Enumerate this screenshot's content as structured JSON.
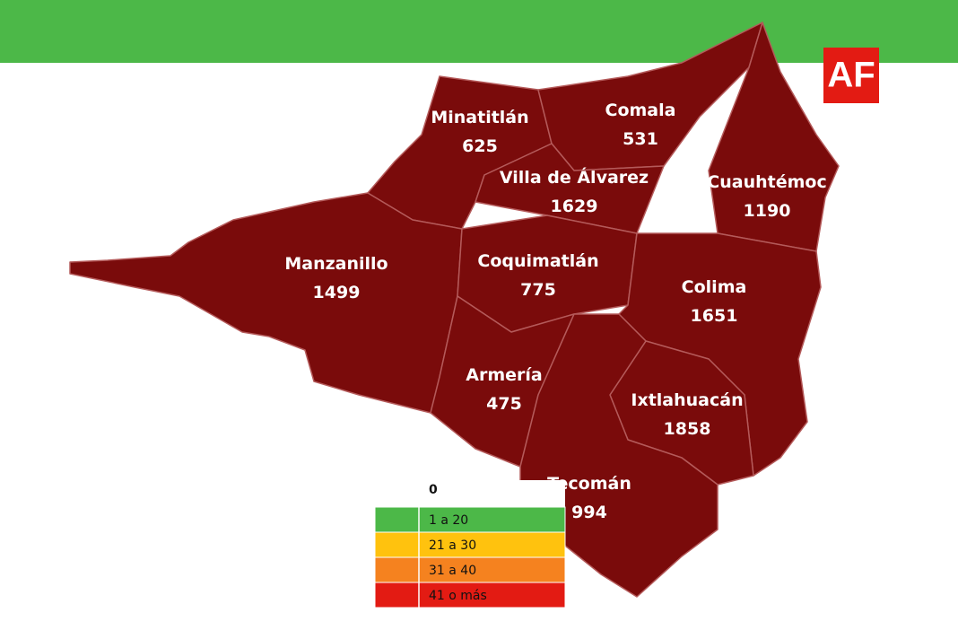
{
  "logo": "AF",
  "regions": [
    {
      "name": "Minatitlán",
      "count": 625
    },
    {
      "name": "Comala",
      "count": 531
    },
    {
      "name": "Villa de Álvarez",
      "count": 1629
    },
    {
      "name": "Cuauhtémoc",
      "count": 1190
    },
    {
      "name": "Manzanillo",
      "count": 1499
    },
    {
      "name": "Coquimatlán",
      "count": 775
    },
    {
      "name": "Colima",
      "count": 1651
    },
    {
      "name": "Armería",
      "count": 475
    },
    {
      "name": "Ixtlahuacán",
      "count": 1858
    },
    {
      "name": "Tecomán",
      "count": 994
    }
  ],
  "legend": {
    "header": "0",
    "items": [
      {
        "label": "1 a 20",
        "color": "#4cb848"
      },
      {
        "label": "21 a 30",
        "color": "#ffc20e"
      },
      {
        "label": "31 a 40",
        "color": "#f5821f"
      },
      {
        "label": "41 o más",
        "color": "#e31b13"
      }
    ]
  }
}
